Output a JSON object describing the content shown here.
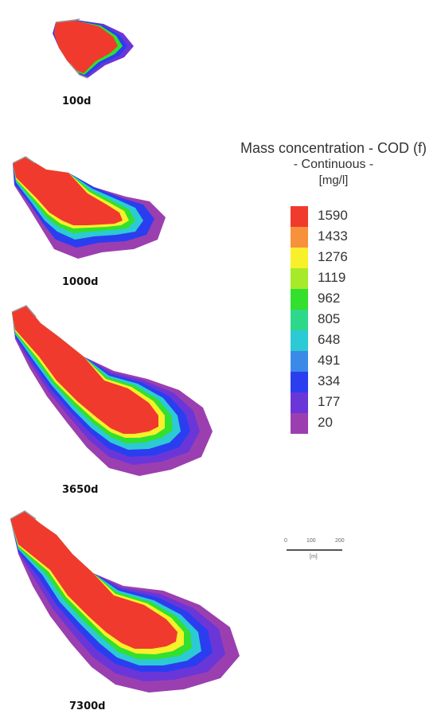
{
  "panels": [
    {
      "time_label": "100d"
    },
    {
      "time_label": "1000d"
    },
    {
      "time_label": "3650d"
    },
    {
      "time_label": "7300d"
    }
  ],
  "legend": {
    "title": "Mass concentration - COD (f)",
    "subtitle": "- Continuous -",
    "unit": "[mg/l]",
    "items": [
      {
        "value": "1590",
        "color": "#f03a2e"
      },
      {
        "value": "1433",
        "color": "#f7913c"
      },
      {
        "value": "1276",
        "color": "#f7f02a"
      },
      {
        "value": "1119",
        "color": "#a6ea2a"
      },
      {
        "value": "962",
        "color": "#32e02d"
      },
      {
        "value": "805",
        "color": "#2dd88b"
      },
      {
        "value": "648",
        "color": "#2ccad4"
      },
      {
        "value": "491",
        "color": "#3b8ae8"
      },
      {
        "value": "334",
        "color": "#2a3ef0"
      },
      {
        "value": "177",
        "color": "#6b36d8"
      },
      {
        "value": "20",
        "color": "#9b3fb0"
      }
    ]
  },
  "scale_bar": {
    "ticks": [
      "0",
      "100",
      "200"
    ],
    "unit": "[m]"
  }
}
